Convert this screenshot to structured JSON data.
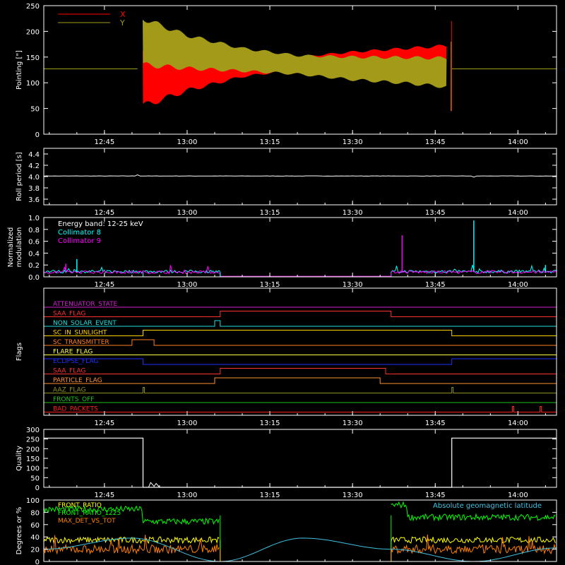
{
  "chart_data": [
    {
      "type": "line",
      "panel": "pointing",
      "ylabel": "Pointing [\"]",
      "ylim": [
        0,
        250
      ],
      "yticks": [
        0,
        50,
        100,
        150,
        200,
        250
      ],
      "xlim": [
        "12:34",
        "14:07"
      ],
      "xticks": [
        "12:45",
        "13:00",
        "13:15",
        "13:30",
        "13:45",
        "14:00"
      ],
      "legend": {
        "position": "top-left",
        "entries": [
          "X",
          "Y"
        ]
      },
      "series": [
        {
          "name": "X",
          "color": "#ff0000",
          "x": [
            "12:34",
            "12:51",
            "12:52",
            "13:00",
            "13:10",
            "13:20",
            "13:30",
            "13:40",
            "13:47",
            "13:48",
            "14:07"
          ],
          "y_center": [
            127,
            127,
            110,
            120,
            130,
            138,
            142,
            145,
            147,
            127,
            127
          ],
          "y_amplitude": [
            0,
            0,
            55,
            35,
            18,
            12,
            18,
            22,
            25,
            0,
            0
          ]
        },
        {
          "name": "Y",
          "color": "#a29a18",
          "x": [
            "12:34",
            "12:51",
            "12:52",
            "13:00",
            "13:10",
            "13:20",
            "13:30",
            "13:40",
            "13:47",
            "13:48",
            "14:07"
          ],
          "y_center": [
            127,
            127,
            180,
            160,
            145,
            135,
            128,
            124,
            120,
            127,
            127
          ],
          "y_amplitude": [
            0,
            0,
            45,
            32,
            22,
            18,
            22,
            25,
            28,
            0,
            0
          ]
        }
      ]
    },
    {
      "type": "line",
      "panel": "roll",
      "ylabel": "Roll period [s]",
      "ylim": [
        3.5,
        4.5
      ],
      "yticks": [
        3.6,
        3.8,
        4.0,
        4.2,
        4.4
      ],
      "ytick_labels": [
        "3.6",
        "3.8",
        "4.0",
        "4.2",
        "4.4"
      ],
      "xticks": [
        "12:45",
        "13:00",
        "13:15",
        "13:30",
        "13:45",
        "14:00"
      ],
      "series": [
        {
          "color": "#ffffff",
          "x": [
            "12:34",
            "14:07"
          ],
          "y": [
            4.01,
            4.01
          ]
        }
      ]
    },
    {
      "type": "line",
      "panel": "modulation",
      "ylabel": "Normalized modulation",
      "ylim": [
        0,
        1
      ],
      "yticks": [
        0,
        0.2,
        0.4,
        0.6,
        0.8,
        1.0
      ],
      "ytick_labels": [
        "0.0",
        "0.2",
        "0.4",
        "0.6",
        "0.8",
        "1.0"
      ],
      "xticks": [
        "12:45",
        "13:00",
        "13:15",
        "13:30",
        "13:45",
        "14:00"
      ],
      "annotations": [
        "Energy band: 12-25 keV"
      ],
      "series": [
        {
          "name": "Collimator 8",
          "color": "#00ffff",
          "baseline": 0.08,
          "segments": [
            [
              "12:34",
              "13:06"
            ],
            [
              "13:37",
              "14:07"
            ]
          ],
          "spikes": [
            [
              "12:40",
              0.3
            ],
            [
              "13:52",
              0.95
            ],
            [
              "14:05",
              0.2
            ]
          ]
        },
        {
          "name": "Collimator 9",
          "color": "#ff00ff",
          "baseline": 0.07,
          "segments": [
            [
              "12:34",
              "13:06"
            ],
            [
              "13:37",
              "14:07"
            ]
          ],
          "spikes": [
            [
              "12:38",
              0.22
            ],
            [
              "13:39",
              0.7
            ]
          ]
        }
      ]
    },
    {
      "type": "flags",
      "panel": "flags",
      "ylabel": "Flags",
      "xticks": [
        "12:45",
        "13:00",
        "13:15",
        "13:30",
        "13:45",
        "14:00"
      ],
      "flags": [
        {
          "name": "ATTENUATOR_STATE",
          "color": "#d020d0",
          "high": []
        },
        {
          "name": "SAA_FLAG",
          "color": "#ff3030",
          "high": [
            [
              "13:06",
              "13:37"
            ]
          ]
        },
        {
          "name": "NON_SOLAR_EVENT",
          "color": "#20e0e0",
          "high": [
            [
              "13:05",
              "13:06"
            ]
          ]
        },
        {
          "name": "SC_IN_SUNLIGHT",
          "color": "#ffd000",
          "high": [
            [
              "12:52",
              "13:48"
            ]
          ]
        },
        {
          "name": "SC_TRANSMITTER",
          "color": "#ff8020",
          "high": [
            [
              "12:50",
              "12:54"
            ]
          ]
        },
        {
          "name": "FLARE_FLAG",
          "color": "#ffff40",
          "high": []
        },
        {
          "name": "ECLIPSE_FLAG",
          "color": "#2030ff",
          "high": [
            [
              "12:34",
              "12:52"
            ],
            [
              "13:48",
              "14:07"
            ]
          ]
        },
        {
          "name": "SAA_FLAG",
          "color": "#ff3030",
          "high": [
            [
              "13:06",
              "13:36"
            ]
          ]
        },
        {
          "name": "PARTICLE_FLAG",
          "color": "#ff9030",
          "high": [
            [
              "13:05",
              "13:35"
            ]
          ]
        },
        {
          "name": "AAZ_FLAG",
          "color": "#909020",
          "high": [
            [
              "12:52",
              "12:52"
            ],
            [
              "13:48",
              "13:48"
            ]
          ]
        },
        {
          "name": "FRONTS_OFF",
          "color": "#20c020",
          "high": []
        },
        {
          "name": "BAD_PACKETS",
          "color": "#ff2020",
          "high": [
            [
              "13:59",
              "13:59"
            ],
            [
              "14:04",
              "14:04"
            ]
          ]
        }
      ]
    },
    {
      "type": "line",
      "panel": "quality",
      "ylabel": "Quality",
      "ylim": [
        0,
        300
      ],
      "yticks": [
        0,
        50,
        100,
        150,
        200,
        250,
        300
      ],
      "xticks": [
        "12:45",
        "13:00",
        "13:15",
        "13:30",
        "13:45",
        "14:00"
      ],
      "series": [
        {
          "color": "#ffffff",
          "x": [
            "12:34",
            "12:52",
            "12:52",
            "13:48",
            "13:48",
            "14:07"
          ],
          "y": [
            255,
            255,
            0,
            0,
            255,
            255
          ]
        }
      ]
    },
    {
      "type": "line",
      "panel": "geomag",
      "ylabel": "Degrees or %",
      "ylim": [
        0,
        100
      ],
      "yticks": [
        0,
        20,
        40,
        60,
        80,
        100
      ],
      "annotations": [
        "Absolute geomagnetic latitude"
      ],
      "series": [
        {
          "name": "FRONT_RATIO",
          "color": "#ffff00",
          "baseline": 35,
          "segments": [
            [
              "12:34",
              "13:06"
            ],
            [
              "13:37",
              "14:07"
            ]
          ]
        },
        {
          "name": "FRONT_RATIO_1225",
          "color": "#00ff00",
          "baseline": 75,
          "segments": [
            [
              "12:34",
              "13:06"
            ],
            [
              "13:37",
              "14:07"
            ]
          ]
        },
        {
          "name": "MAX_DET_VS_TOT",
          "color": "#ff8000",
          "baseline": 20,
          "segments": [
            [
              "12:34",
              "13:06"
            ],
            [
              "13:37",
              "14:07"
            ]
          ]
        },
        {
          "name": "Absolute geomagnetic latitude",
          "color": "#40c0e0",
          "x": [
            "12:34",
            "12:50",
            "13:06",
            "13:21",
            "13:37",
            "13:52",
            "14:07"
          ],
          "y": [
            20,
            38,
            0,
            38,
            20,
            0,
            22
          ]
        }
      ]
    }
  ]
}
